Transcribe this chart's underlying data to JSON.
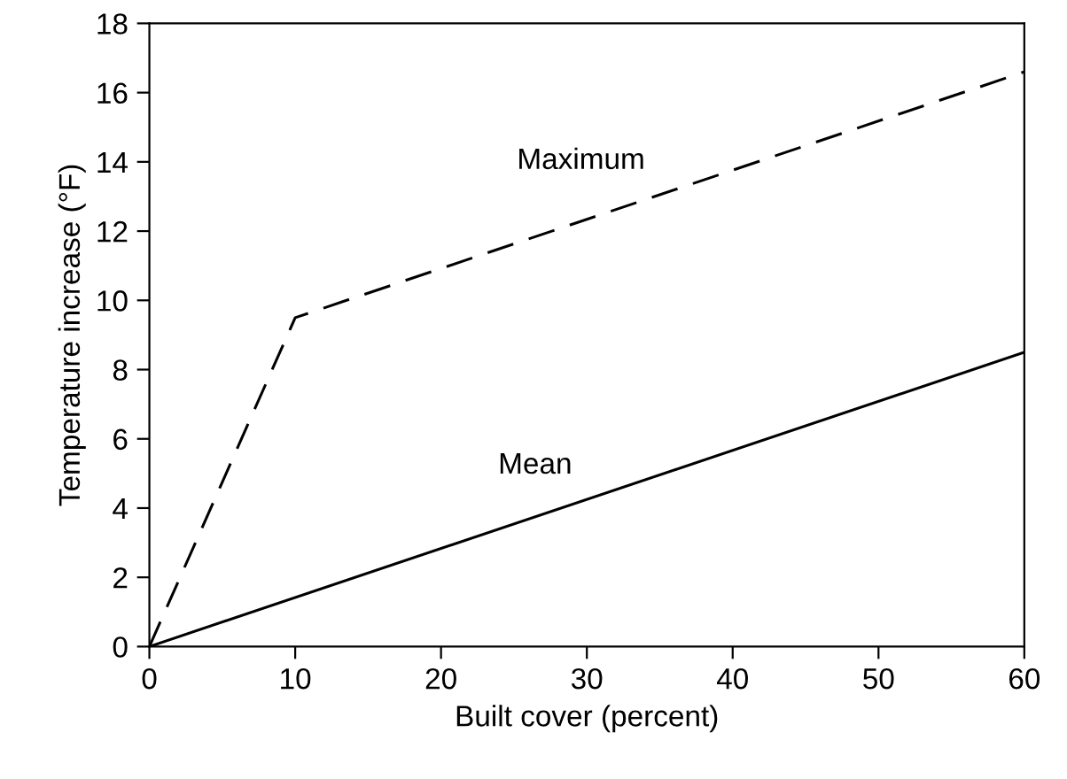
{
  "chart_data": {
    "type": "line",
    "xlabel": "Built cover (percent)",
    "ylabel": "Temperature increase (°F)",
    "series": [
      {
        "name": "Maximum",
        "color": "#000000",
        "x": [
          0,
          10,
          60
        ],
        "values": [
          0,
          9.5,
          16.6
        ],
        "line_style": "dashed"
      },
      {
        "name": "Mean",
        "color": "#000000",
        "x": [
          0,
          60
        ],
        "values": [
          0,
          8.5
        ],
        "line_style": "solid"
      }
    ],
    "xlim": [
      0,
      60
    ],
    "xticks": [
      0,
      10,
      20,
      30,
      40,
      50,
      60
    ],
    "ylim": [
      0,
      18
    ],
    "yticks": [
      0,
      2,
      4,
      6,
      8,
      10,
      12,
      14,
      16,
      18
    ],
    "grid": false,
    "legend": false,
    "marker": "none"
  }
}
